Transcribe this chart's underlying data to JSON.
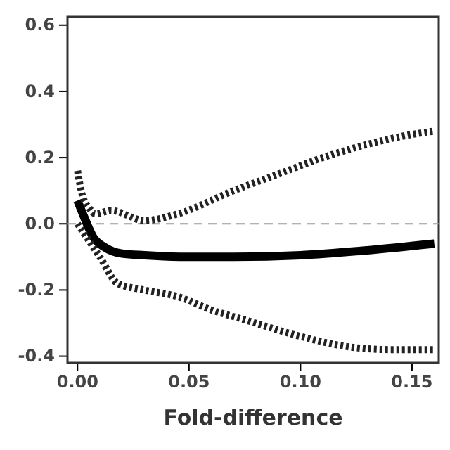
{
  "chart_data": {
    "type": "line",
    "xlabel": "Fold-difference",
    "xlim": [
      -0.0045,
      0.162
    ],
    "xticks": [
      {
        "value": 0,
        "label": "0.00"
      },
      {
        "value": 0.05,
        "label": "0.05"
      },
      {
        "value": 0.1,
        "label": "0.10"
      },
      {
        "value": 0.15,
        "label": "0.15"
      }
    ],
    "ylim": [
      -0.42,
      0.625
    ],
    "yticks": [
      {
        "value": -0.4,
        "label": "-0.4"
      },
      {
        "value": -0.2,
        "label": "-0.2"
      },
      {
        "value": 0,
        "label": "0.0"
      },
      {
        "value": 0.2,
        "label": "0.2"
      },
      {
        "value": 0.4,
        "label": "0.4"
      },
      {
        "value": 0.6,
        "label": "0.6"
      }
    ],
    "grid": false,
    "marker": "none",
    "ref_lines": [
      {
        "axis": "y",
        "value": 0,
        "color": "#999999",
        "line_style": "dashed"
      }
    ],
    "series": [
      {
        "color": "#000000",
        "line_style": "solid",
        "x": [
          0,
          0.003,
          0.007,
          0.012,
          0.02,
          0.03,
          0.05,
          0.07,
          0.1,
          0.13,
          0.16
        ],
        "values": [
          0.07,
          0.02,
          -0.04,
          -0.07,
          -0.09,
          -0.095,
          -0.1,
          -0.1,
          -0.095,
          -0.08,
          -0.06
        ]
      },
      {
        "color": "#222222",
        "line_style": "dotted",
        "x": [
          0,
          0.002,
          0.005,
          0.008,
          0.015,
          0.03,
          0.045,
          0.07,
          0.09,
          0.11,
          0.13,
          0.15,
          0.16
        ],
        "values": [
          0.16,
          0.09,
          0.05,
          0.03,
          0.04,
          0.01,
          0.03,
          0.1,
          0.15,
          0.2,
          0.24,
          0.27,
          0.28
        ]
      },
      {
        "color": "#222222",
        "line_style": "dotted",
        "x": [
          0,
          0.005,
          0.01,
          0.018,
          0.03,
          0.045,
          0.06,
          0.075,
          0.1,
          0.12,
          0.14,
          0.16
        ],
        "values": [
          0,
          -0.05,
          -0.1,
          -0.18,
          -0.2,
          -0.22,
          -0.26,
          -0.29,
          -0.34,
          -0.37,
          -0.38,
          -0.38
        ]
      }
    ]
  }
}
